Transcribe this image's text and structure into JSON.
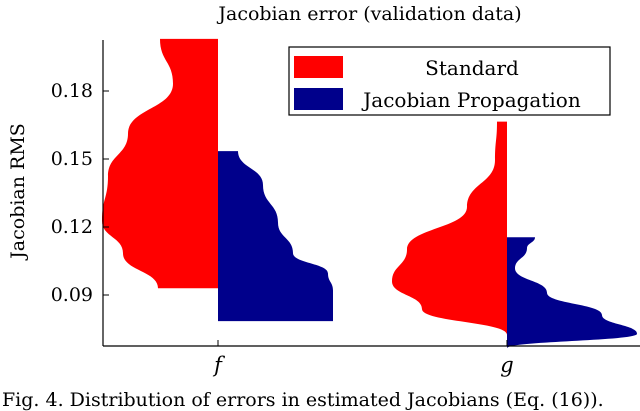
{
  "chart_data": {
    "type": "violin",
    "title": "Jacobian error (validation data)",
    "xlabel": "",
    "ylabel": "Jacobian RMS",
    "categories": [
      "f",
      "g"
    ],
    "ylim": [
      0.0675,
      0.2025
    ],
    "yticks": [
      0.09,
      0.12,
      0.15,
      0.18
    ],
    "ytick_labels": [
      "0.09",
      "0.12",
      "0.15",
      "0.18"
    ],
    "legend_position": "top-right",
    "series": [
      {
        "name": "Standard",
        "color": "#ff0000",
        "side": "left",
        "distributions": [
          {
            "category": "f",
            "min": 0.093,
            "max": 0.203,
            "mode": 0.12
          },
          {
            "category": "g",
            "min": 0.0725,
            "max": 0.1665,
            "mode": 0.101
          }
        ]
      },
      {
        "name": "Jacobian Propagation",
        "color": "#00008b",
        "side": "right",
        "distributions": [
          {
            "category": "f",
            "min": 0.0785,
            "max": 0.1535,
            "mode": 0.09
          },
          {
            "category": "g",
            "min": 0.0665,
            "max": 0.1155,
            "mode": 0.083
          }
        ]
      }
    ]
  },
  "caption": "Fig. 4.   Distribution of errors in estimated Jacobians (Eq. (16))."
}
